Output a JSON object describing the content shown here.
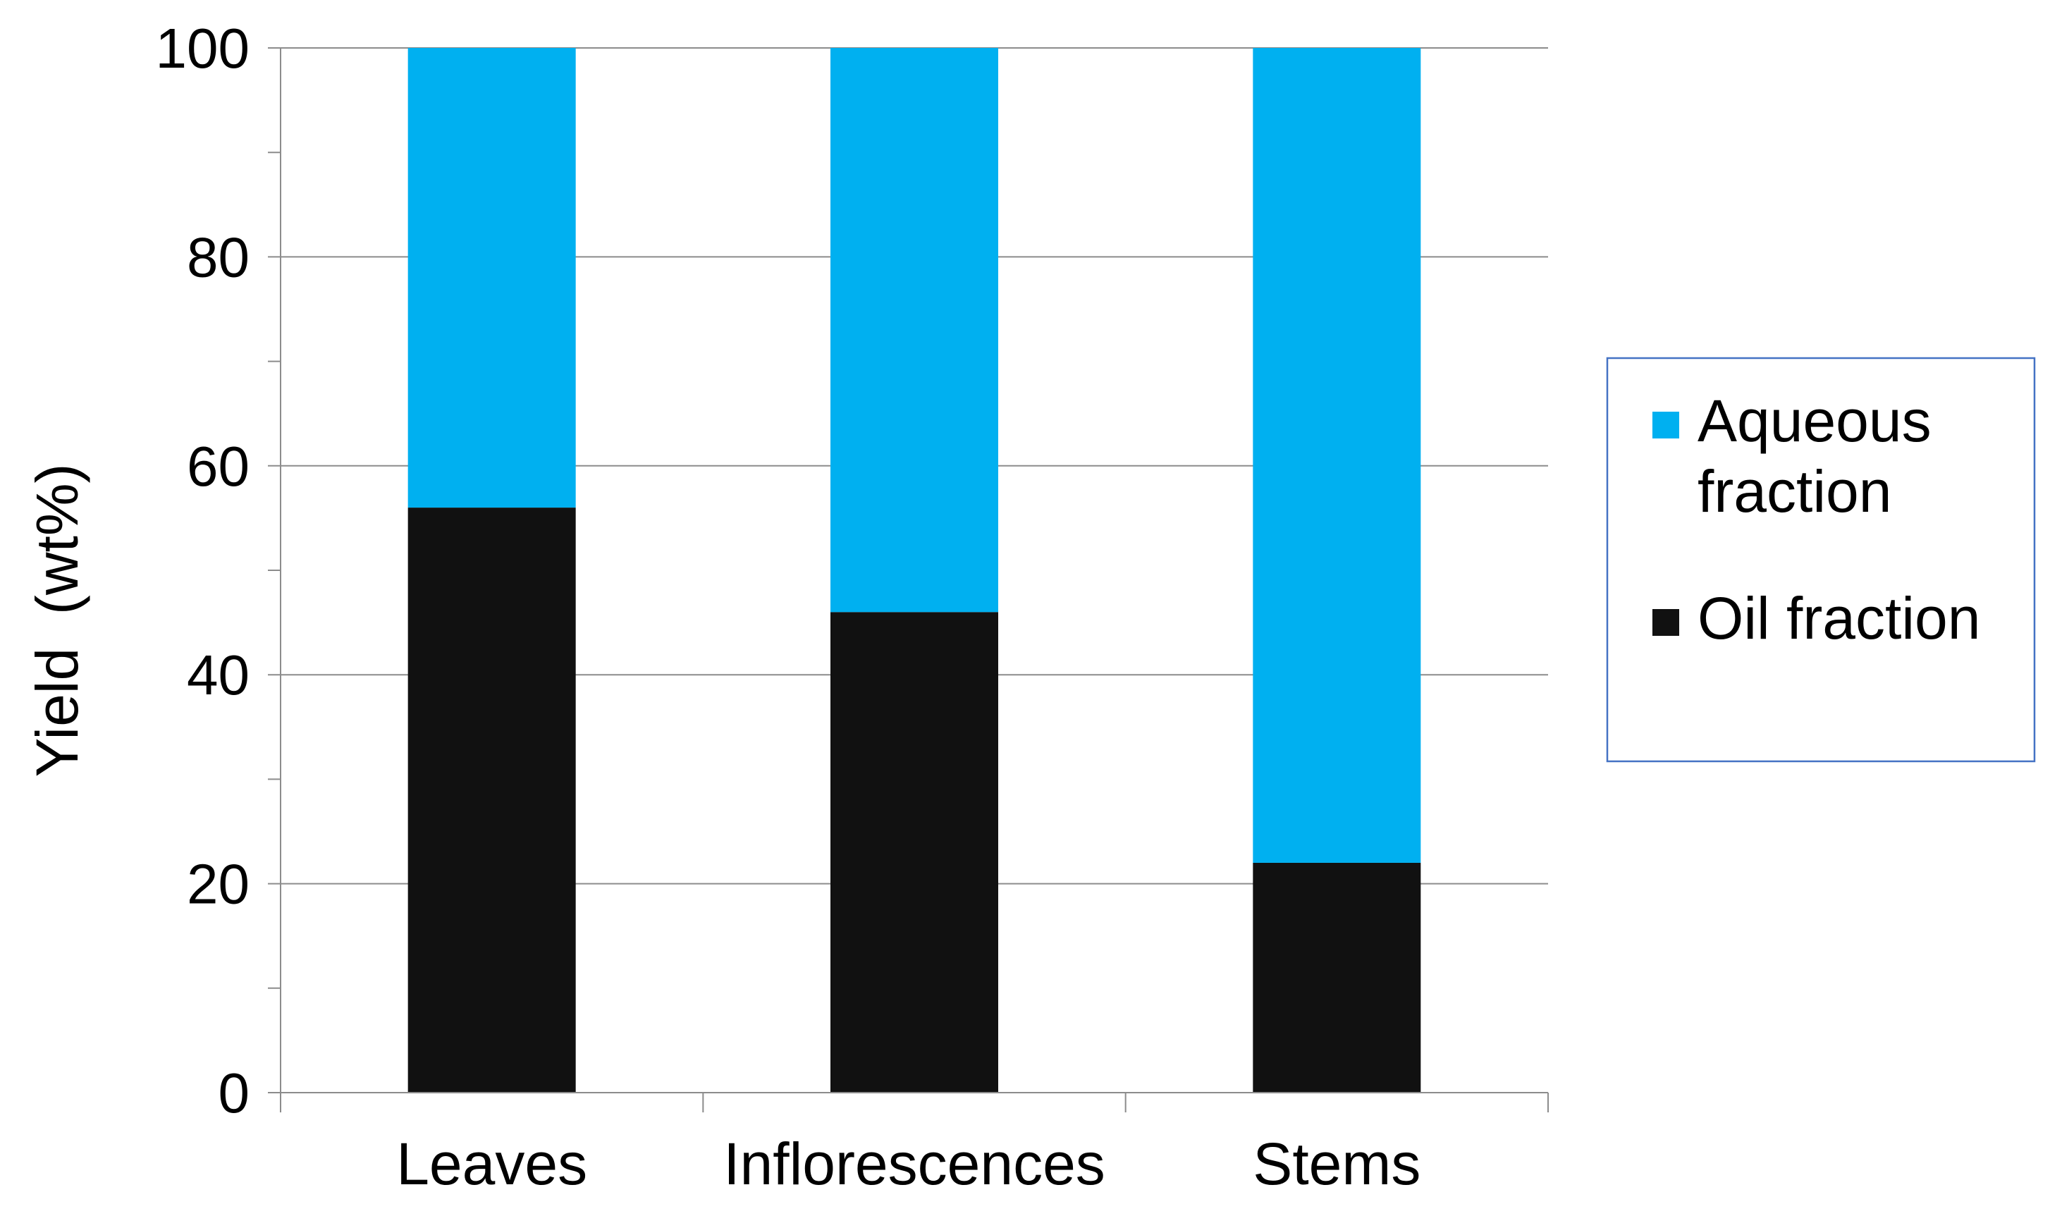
{
  "chart_data": {
    "type": "bar",
    "stacked": true,
    "categories": [
      "Leaves",
      "Inflorescences",
      "Stems"
    ],
    "series": [
      {
        "name": "Oil fraction",
        "values": [
          56,
          46,
          22
        ],
        "color": "#111111"
      },
      {
        "name": "Aqueous fraction",
        "values": [
          44,
          54,
          78
        ],
        "color": "#00B0F0"
      }
    ],
    "legend": {
      "position": "right",
      "items": [
        {
          "lines": [
            "Aqueous",
            "fraction"
          ],
          "series": "Aqueous fraction",
          "color": "#00B0F0"
        },
        {
          "lines": [
            "Oil fraction"
          ],
          "series": "Oil fraction",
          "color": "#111111"
        }
      ]
    },
    "title": "",
    "xlabel": "",
    "ylabel": "Yield  (wt%)",
    "ylim": [
      0,
      100
    ],
    "y_ticks": [
      "0",
      "20",
      "40",
      "60",
      "80",
      "100"
    ],
    "y_tick_values": [
      0,
      20,
      40,
      60,
      80,
      100
    ],
    "y_minor_step": 10,
    "grid": true
  }
}
